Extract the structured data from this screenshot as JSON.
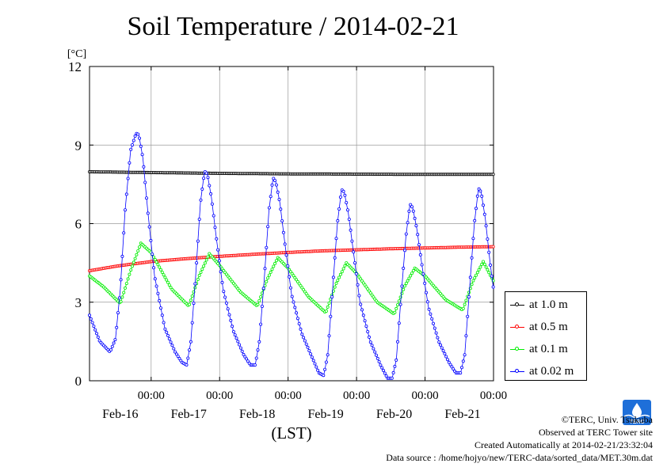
{
  "chart_data": {
    "type": "line",
    "title": "Soil Temperature / 2014-02-21",
    "unit_label": "[°C]",
    "xlabel": "(LST)",
    "ylim": [
      0,
      12
    ],
    "y_ticks": [
      0,
      3,
      6,
      9,
      12
    ],
    "xlim_days_from_feb16_0000": [
      -0.9,
      5.0
    ],
    "x_tick_time_label": "00:00",
    "x_date_labels": [
      "Feb-16",
      "Feb-17",
      "Feb-18",
      "Feb-19",
      "Feb-20",
      "Feb-21"
    ],
    "grid": true,
    "legend_position": "right",
    "series": [
      {
        "name": "at 1.0 m",
        "color": "#000000",
        "x": [
          -0.9,
          0.0,
          1.0,
          2.0,
          3.0,
          4.0,
          5.0
        ],
        "y": [
          7.98,
          7.95,
          7.92,
          7.9,
          7.89,
          7.88,
          7.88
        ]
      },
      {
        "name": "at 0.5 m",
        "color": "#ff0000",
        "x": [
          -0.9,
          -0.5,
          0.0,
          0.5,
          1.0,
          1.5,
          2.0,
          2.5,
          3.0,
          3.5,
          4.0,
          4.5,
          5.0
        ],
        "y": [
          4.2,
          4.38,
          4.55,
          4.66,
          4.75,
          4.83,
          4.9,
          4.96,
          5.0,
          5.04,
          5.07,
          5.1,
          5.12
        ]
      },
      {
        "name": "at 0.1 m",
        "color": "#00ee00",
        "x": [
          -0.9,
          -0.7,
          -0.45,
          -0.3,
          -0.15,
          0.0,
          0.3,
          0.55,
          0.7,
          0.85,
          1.0,
          1.3,
          1.55,
          1.7,
          1.85,
          2.0,
          2.3,
          2.55,
          2.7,
          2.85,
          3.0,
          3.3,
          3.55,
          3.7,
          3.85,
          4.0,
          4.3,
          4.55,
          4.7,
          4.85,
          5.0
        ],
        "y": [
          4.0,
          3.6,
          2.95,
          4.2,
          5.25,
          4.9,
          3.5,
          2.85,
          4.0,
          4.85,
          4.4,
          3.4,
          2.85,
          3.9,
          4.7,
          4.3,
          3.2,
          2.6,
          3.7,
          4.5,
          4.1,
          3.0,
          2.55,
          3.6,
          4.3,
          4.0,
          3.1,
          2.7,
          3.8,
          4.55,
          3.8
        ]
      },
      {
        "name": "at 0.02 m",
        "color": "#0000ff",
        "x": [
          -0.9,
          -0.75,
          -0.6,
          -0.52,
          -0.45,
          -0.38,
          -0.3,
          -0.22,
          -0.18,
          -0.12,
          -0.05,
          0.05,
          0.2,
          0.35,
          0.45,
          0.52,
          0.58,
          0.65,
          0.72,
          0.78,
          0.82,
          0.88,
          0.95,
          1.05,
          1.2,
          1.35,
          1.45,
          1.52,
          1.58,
          1.65,
          1.72,
          1.78,
          1.82,
          1.88,
          1.95,
          2.05,
          2.2,
          2.35,
          2.45,
          2.52,
          2.58,
          2.65,
          2.72,
          2.78,
          2.82,
          2.88,
          2.95,
          3.05,
          3.2,
          3.35,
          3.45,
          3.52,
          3.58,
          3.65,
          3.72,
          3.78,
          3.82,
          3.88,
          3.95,
          4.05,
          4.2,
          4.35,
          4.45,
          4.52,
          4.58,
          4.65,
          4.72,
          4.78,
          4.82,
          4.88,
          4.95,
          5.0
        ],
        "y": [
          2.5,
          1.5,
          1.1,
          1.6,
          3.5,
          6.5,
          8.8,
          9.45,
          9.4,
          8.5,
          6.5,
          4.0,
          2.0,
          1.1,
          0.7,
          0.6,
          1.5,
          4.0,
          6.8,
          8.0,
          7.9,
          7.0,
          5.5,
          3.5,
          1.9,
          1.0,
          0.6,
          0.6,
          1.5,
          3.8,
          6.5,
          7.75,
          7.6,
          6.8,
          5.3,
          3.3,
          1.8,
          0.9,
          0.3,
          0.2,
          1.0,
          3.5,
          6.0,
          7.3,
          7.2,
          6.4,
          5.0,
          3.0,
          1.5,
          0.6,
          0.1,
          0.1,
          0.8,
          3.2,
          5.5,
          6.75,
          6.6,
          5.8,
          4.5,
          2.8,
          1.5,
          0.7,
          0.3,
          0.3,
          1.0,
          3.5,
          6.0,
          7.35,
          7.2,
          6.2,
          4.5,
          3.5
        ]
      }
    ]
  },
  "credits": {
    "copyright": "©TERC, Univ. Tsukuba",
    "observed": "Observed at TERC Tower site",
    "created": "Created Automatically at 2014-02-21/23:32:04",
    "source": "Data source : /home/hojyo/new/TERC-data/sorted_data/MET.30m.dat"
  },
  "logo": {
    "text": "TERC",
    "color": "#1e6fd9"
  }
}
